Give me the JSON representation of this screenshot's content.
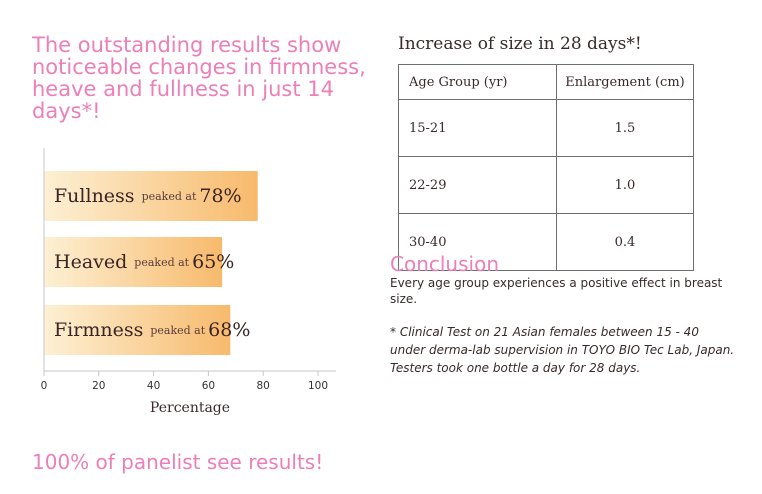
{
  "headline": "The outstanding results show noticeable changes in firmness, heave and fullness in just 14 days*!",
  "footer_note": "100% of panelist see results!",
  "chart_data": {
    "type": "bar",
    "orientation": "horizontal",
    "categories": [
      "Fullness",
      "Heaved",
      "Firmness"
    ],
    "values": [
      78,
      65,
      68
    ],
    "bar_texts": [
      {
        "name": "Fullness",
        "note": "peaked at",
        "value": "78%"
      },
      {
        "name": "Heaved",
        "note": "peaked at",
        "value": "65%"
      },
      {
        "name": "Firmness",
        "note": "peaked at",
        "value": "68%"
      }
    ],
    "xlabel": "Percentage",
    "xlim": [
      0,
      100
    ],
    "ticks": [
      "0",
      "20",
      "40",
      "60",
      "80",
      "100"
    ],
    "grid": false,
    "colors": {
      "bar_light": "#fdf0d4",
      "bar_dark": "#f7ba6c",
      "axis": "#c7c7c7"
    }
  },
  "table": {
    "title": "Increase of size in 28 days*!",
    "headers": [
      "Age Group (yr)",
      "Enlargement (cm)"
    ],
    "rows": [
      [
        "15-21",
        "1.5"
      ],
      [
        "22-29",
        "1.0"
      ],
      [
        "30-40",
        "0.4"
      ]
    ]
  },
  "conclusion": {
    "title": "Conclusion",
    "body": "Every age group experiences a positive effect in breast size."
  },
  "footnote": "* Clinical Test on 21 Asian females between 15 - 40 under derma-lab supervision in TOYO BIO Tec Lab, Japan.  Testers took one bottle a day for 28 days."
}
